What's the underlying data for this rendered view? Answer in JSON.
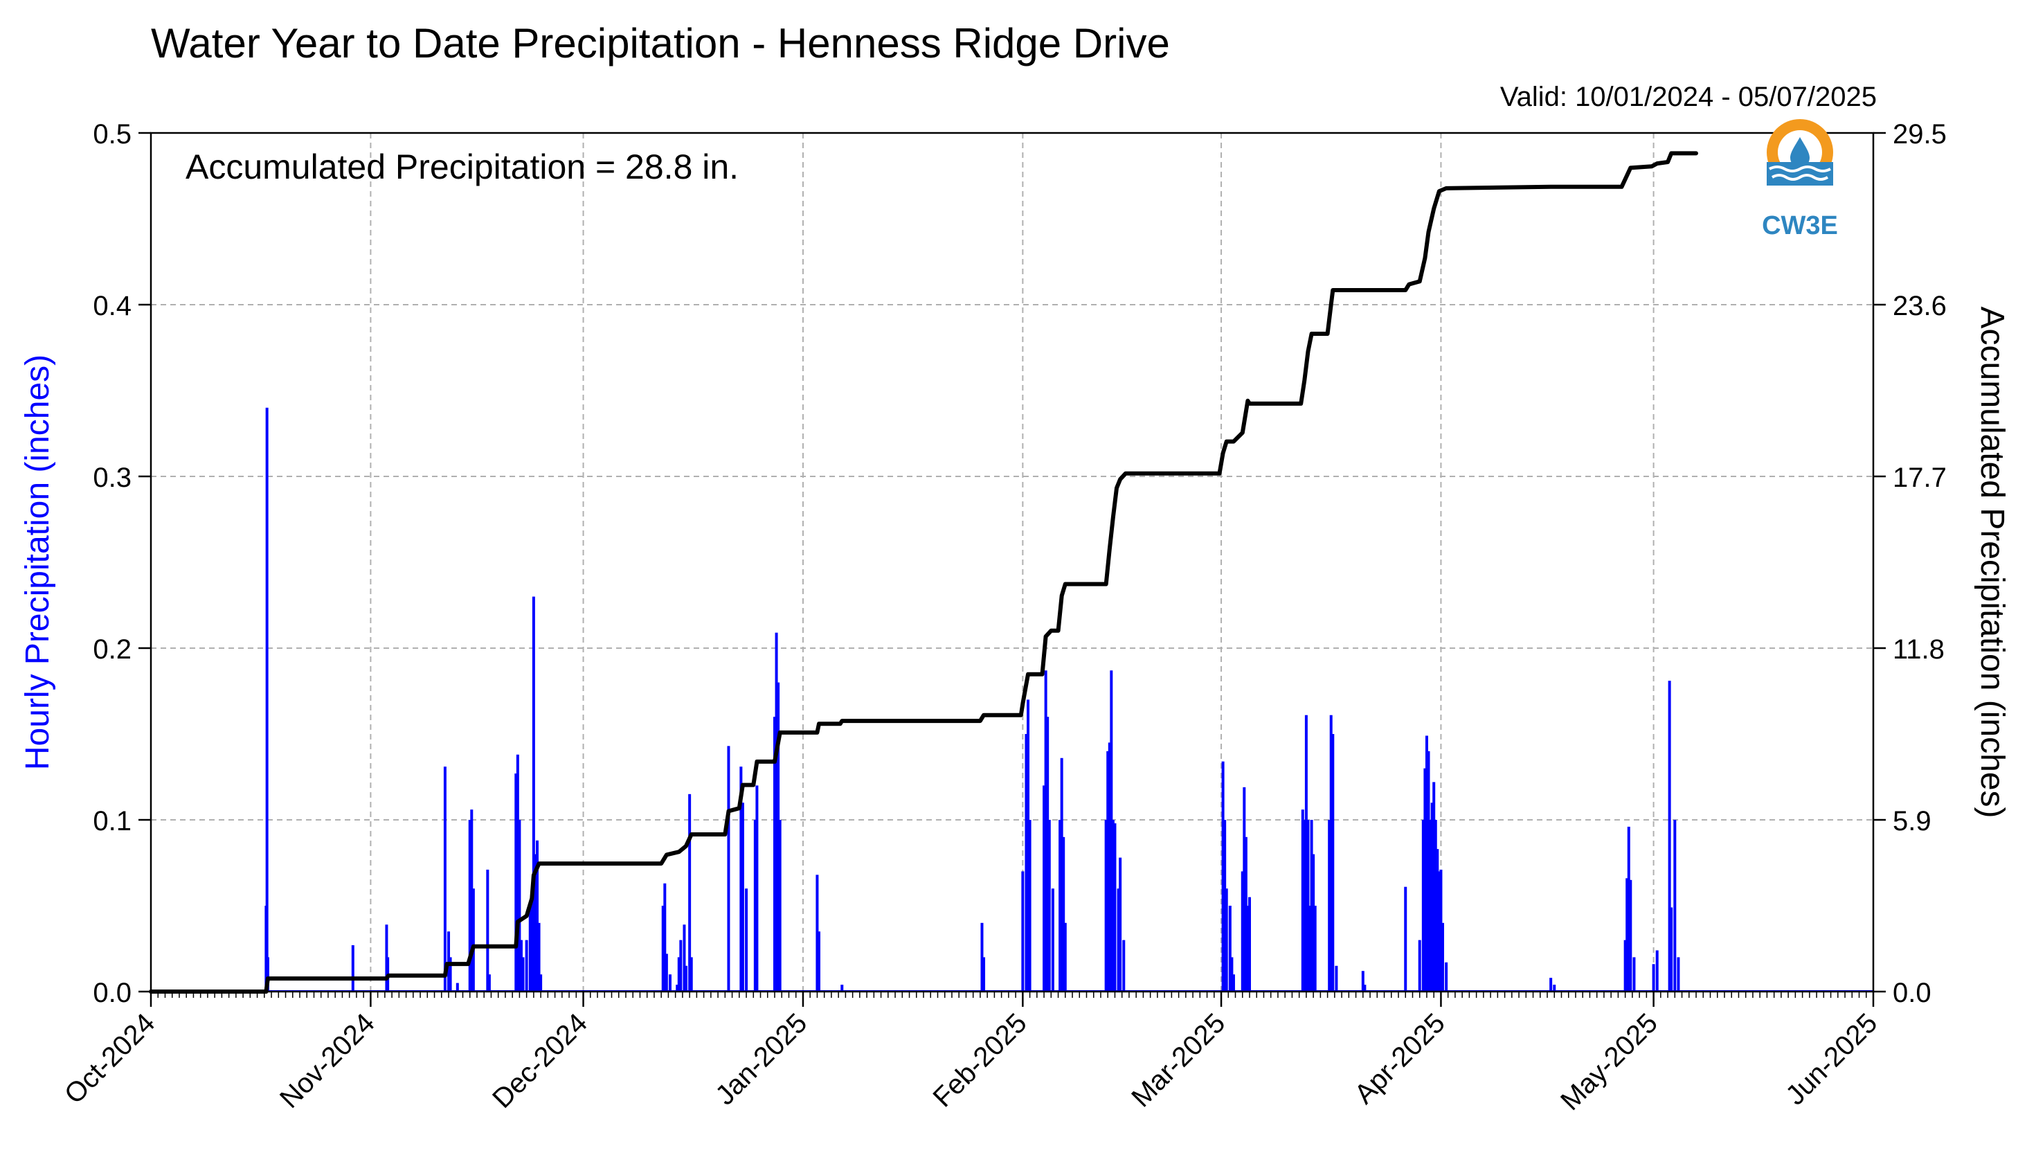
{
  "title": "Water Year to Date Precipitation - Henness Ridge Drive",
  "valid": "Valid: 10/01/2024 - 05/07/2025",
  "annotation": "Accumulated Precipitation = 28.8 in.",
  "logo_text": "CW3E",
  "colors": {
    "hourly": "#0000ff",
    "accumulated": "#000000",
    "grid": "#b0b0b0",
    "logo_orange": "#f39a1e",
    "logo_blue": "#2e86c1"
  },
  "chart_data": {
    "type": "bar+line",
    "xlabel": "",
    "ylabel_left": "Hourly Precipitation (inches)",
    "ylabel_right": "Accumulated Precipitation (inches)",
    "x_range": [
      "2024-10-01",
      "2025-06-01"
    ],
    "x_ticks": [
      "Oct-2024",
      "Nov-2024",
      "Dec-2024",
      "Jan-2025",
      "Feb-2025",
      "Mar-2025",
      "Apr-2025",
      "May-2025",
      "Jun-2025"
    ],
    "x_tick_dates": [
      "2024-10-01",
      "2024-11-01",
      "2024-12-01",
      "2025-01-01",
      "2025-02-01",
      "2025-03-01",
      "2025-04-01",
      "2025-05-01",
      "2025-06-01"
    ],
    "ylim_left": [
      0,
      0.5
    ],
    "yticks_left": [
      "0.0",
      "0.1",
      "0.2",
      "0.3",
      "0.4",
      "0.5"
    ],
    "ylim_right": [
      0,
      29.5
    ],
    "yticks_right": [
      "0.0",
      "5.9",
      "11.8",
      "17.7",
      "23.6",
      "29.5"
    ],
    "grid": true,
    "series": [
      {
        "name": "Hourly Precipitation",
        "type": "bar",
        "points": [
          [
            "2024-10-17 06:00",
            0.05
          ],
          [
            "2024-10-17 09:00",
            0.34
          ],
          [
            "2024-10-17 12:00",
            0.02
          ],
          [
            "2024-10-29 12:00",
            0.027
          ],
          [
            "2024-11-03 06:00",
            0.039
          ],
          [
            "2024-11-03 10:00",
            0.02
          ],
          [
            "2024-11-11 12:00",
            0.131
          ],
          [
            "2024-11-12 00:00",
            0.035
          ],
          [
            "2024-11-12 06:00",
            0.02
          ],
          [
            "2024-11-13 06:00",
            0.005
          ],
          [
            "2024-11-15 00:00",
            0.1
          ],
          [
            "2024-11-15 06:00",
            0.106
          ],
          [
            "2024-11-15 12:00",
            0.06
          ],
          [
            "2024-11-17 12:00",
            0.071
          ],
          [
            "2024-11-17 18:00",
            0.01
          ],
          [
            "2024-11-21 12:00",
            0.127
          ],
          [
            "2024-11-21 18:00",
            0.138
          ],
          [
            "2024-11-22 00:00",
            0.1
          ],
          [
            "2024-11-22 06:00",
            0.03
          ],
          [
            "2024-11-22 12:00",
            0.02
          ],
          [
            "2024-11-23 00:00",
            0.03
          ],
          [
            "2024-11-23 12:00",
            0.05
          ],
          [
            "2024-11-23 18:00",
            0.055
          ],
          [
            "2024-11-24 00:00",
            0.23
          ],
          [
            "2024-11-24 06:00",
            0.08
          ],
          [
            "2024-11-24 12:00",
            0.088
          ],
          [
            "2024-11-24 18:00",
            0.04
          ],
          [
            "2024-11-25 00:00",
            0.01
          ],
          [
            "2024-12-12 06:00",
            0.05
          ],
          [
            "2024-12-12 12:00",
            0.063
          ],
          [
            "2024-12-12 18:00",
            0.022
          ],
          [
            "2024-12-13 06:00",
            0.01
          ],
          [
            "2024-12-14 06:00",
            0.004
          ],
          [
            "2024-12-14 12:00",
            0.02
          ],
          [
            "2024-12-14 18:00",
            0.03
          ],
          [
            "2024-12-15 06:00",
            0.039
          ],
          [
            "2024-12-15 12:00",
            0.015
          ],
          [
            "2024-12-16 00:00",
            0.115
          ],
          [
            "2024-12-16 06:00",
            0.02
          ],
          [
            "2024-12-21 12:00",
            0.143
          ],
          [
            "2024-12-23 06:00",
            0.131
          ],
          [
            "2024-12-23 12:00",
            0.11
          ],
          [
            "2024-12-24 00:00",
            0.06
          ],
          [
            "2024-12-25 06:00",
            0.1
          ],
          [
            "2024-12-25 12:00",
            0.12
          ],
          [
            "2024-12-28 00:00",
            0.16
          ],
          [
            "2024-12-28 06:00",
            0.209
          ],
          [
            "2024-12-28 12:00",
            0.18
          ],
          [
            "2024-12-28 18:00",
            0.1
          ],
          [
            "2025-01-03 00:00",
            0.068
          ],
          [
            "2025-01-03 06:00",
            0.035
          ],
          [
            "2025-01-06 12:00",
            0.004
          ],
          [
            "2025-01-26 06:00",
            0.04
          ],
          [
            "2025-01-26 12:00",
            0.02
          ],
          [
            "2025-02-01 00:00",
            0.07
          ],
          [
            "2025-02-01 12:00",
            0.15
          ],
          [
            "2025-02-01 18:00",
            0.17
          ],
          [
            "2025-02-02 00:00",
            0.1
          ],
          [
            "2025-02-04 00:00",
            0.12
          ],
          [
            "2025-02-04 06:00",
            0.187
          ],
          [
            "2025-02-04 12:00",
            0.16
          ],
          [
            "2025-02-04 18:00",
            0.1
          ],
          [
            "2025-02-05 06:00",
            0.06
          ],
          [
            "2025-02-06 06:00",
            0.1
          ],
          [
            "2025-02-06 12:00",
            0.136
          ],
          [
            "2025-02-06 18:00",
            0.09
          ],
          [
            "2025-02-07 00:00",
            0.04
          ],
          [
            "2025-02-12 18:00",
            0.1
          ],
          [
            "2025-02-13 00:00",
            0.14
          ],
          [
            "2025-02-13 06:00",
            0.145
          ],
          [
            "2025-02-13 12:00",
            0.187
          ],
          [
            "2025-02-13 18:00",
            0.1
          ],
          [
            "2025-02-14 00:00",
            0.098
          ],
          [
            "2025-02-14 12:00",
            0.06
          ],
          [
            "2025-02-14 18:00",
            0.078
          ],
          [
            "2025-02-15 06:00",
            0.03
          ],
          [
            "2025-03-01 06:00",
            0.134
          ],
          [
            "2025-03-01 12:00",
            0.1
          ],
          [
            "2025-03-01 18:00",
            0.06
          ],
          [
            "2025-03-02 06:00",
            0.05
          ],
          [
            "2025-03-02 12:00",
            0.02
          ],
          [
            "2025-03-02 18:00",
            0.01
          ],
          [
            "2025-03-04 00:00",
            0.07
          ],
          [
            "2025-03-04 06:00",
            0.119
          ],
          [
            "2025-03-04 12:00",
            0.09
          ],
          [
            "2025-03-04 18:00",
            0.05
          ],
          [
            "2025-03-05 00:00",
            0.055
          ],
          [
            "2025-03-12 12:00",
            0.106
          ],
          [
            "2025-03-12 18:00",
            0.1
          ],
          [
            "2025-03-13 00:00",
            0.161
          ],
          [
            "2025-03-13 06:00",
            0.1
          ],
          [
            "2025-03-13 12:00",
            0.05
          ],
          [
            "2025-03-13 18:00",
            0.1
          ],
          [
            "2025-03-14 00:00",
            0.08
          ],
          [
            "2025-03-14 06:00",
            0.05
          ],
          [
            "2025-03-16 06:00",
            0.1
          ],
          [
            "2025-03-16 12:00",
            0.161
          ],
          [
            "2025-03-16 18:00",
            0.15
          ],
          [
            "2025-03-17 06:00",
            0.015
          ],
          [
            "2025-03-21 00:00",
            0.012
          ],
          [
            "2025-03-21 06:00",
            0.004
          ],
          [
            "2025-03-27 00:00",
            0.061
          ],
          [
            "2025-03-29 00:00",
            0.03
          ],
          [
            "2025-03-29 12:00",
            0.1
          ],
          [
            "2025-03-29 18:00",
            0.13
          ],
          [
            "2025-03-30 00:00",
            0.149
          ],
          [
            "2025-03-30 06:00",
            0.14
          ],
          [
            "2025-03-30 12:00",
            0.1
          ],
          [
            "2025-03-30 18:00",
            0.11
          ],
          [
            "2025-03-31 00:00",
            0.122
          ],
          [
            "2025-03-31 06:00",
            0.1
          ],
          [
            "2025-03-31 12:00",
            0.083
          ],
          [
            "2025-03-31 18:00",
            0.07
          ],
          [
            "2025-04-01 00:00",
            0.071
          ],
          [
            "2025-04-01 06:00",
            0.04
          ],
          [
            "2025-04-01 18:00",
            0.017
          ],
          [
            "2025-04-16 12:00",
            0.008
          ],
          [
            "2025-04-17 00:00",
            0.004
          ],
          [
            "2025-04-27 00:00",
            0.03
          ],
          [
            "2025-04-27 06:00",
            0.066
          ],
          [
            "2025-04-27 12:00",
            0.096
          ],
          [
            "2025-04-27 18:00",
            0.065
          ],
          [
            "2025-04-28 06:00",
            0.02
          ],
          [
            "2025-05-01 00:00",
            0.016
          ],
          [
            "2025-05-01 12:00",
            0.024
          ],
          [
            "2025-05-03 06:00",
            0.181
          ],
          [
            "2025-05-03 12:00",
            0.049
          ],
          [
            "2025-05-04 00:00",
            0.1
          ],
          [
            "2025-05-04 12:00",
            0.02
          ]
        ]
      },
      {
        "name": "Accumulated Precipitation",
        "type": "step-line",
        "points": [
          [
            "2024-10-01",
            0.0
          ],
          [
            "2024-10-17 06:00",
            0.0
          ],
          [
            "2024-10-17 12:00",
            0.45
          ],
          [
            "2024-11-03 06:00",
            0.45
          ],
          [
            "2024-11-03 12:00",
            0.55
          ],
          [
            "2024-11-11 12:00",
            0.55
          ],
          [
            "2024-11-11 18:00",
            0.95
          ],
          [
            "2024-11-14 18:00",
            0.95
          ],
          [
            "2024-11-15 12:00",
            1.55
          ],
          [
            "2024-11-21 12:00",
            1.55
          ],
          [
            "2024-11-21 18:00",
            2.4
          ],
          [
            "2024-11-23 00:00",
            2.6
          ],
          [
            "2024-11-23 18:00",
            3.2
          ],
          [
            "2024-11-24 00:00",
            4.0
          ],
          [
            "2024-11-24 18:00",
            4.4
          ],
          [
            "2024-12-12 00:00",
            4.4
          ],
          [
            "2024-12-12 18:00",
            4.7
          ],
          [
            "2024-12-14 12:00",
            4.8
          ],
          [
            "2024-12-15 12:00",
            5.0
          ],
          [
            "2024-12-16 06:00",
            5.4
          ],
          [
            "2024-12-21 00:00",
            5.4
          ],
          [
            "2024-12-21 12:00",
            6.2
          ],
          [
            "2024-12-23 00:00",
            6.3
          ],
          [
            "2024-12-23 12:00",
            7.1
          ],
          [
            "2024-12-25 00:00",
            7.1
          ],
          [
            "2024-12-25 12:00",
            7.9
          ],
          [
            "2024-12-28 00:00",
            7.9
          ],
          [
            "2024-12-28 18:00",
            8.9
          ],
          [
            "2025-01-03 00:00",
            8.9
          ],
          [
            "2025-01-03 06:00",
            9.2
          ],
          [
            "2025-01-06 06:00",
            9.2
          ],
          [
            "2025-01-06 12:00",
            9.3
          ],
          [
            "2025-01-26 00:00",
            9.3
          ],
          [
            "2025-01-26 12:00",
            9.5
          ],
          [
            "2025-01-31 18:00",
            9.5
          ],
          [
            "2025-02-01 00:00",
            9.9
          ],
          [
            "2025-02-01 18:00",
            10.9
          ],
          [
            "2025-02-03 18:00",
            10.9
          ],
          [
            "2025-02-04 06:00",
            12.2
          ],
          [
            "2025-02-05 00:00",
            12.4
          ],
          [
            "2025-02-06 00:00",
            12.4
          ],
          [
            "2025-02-06 12:00",
            13.6
          ],
          [
            "2025-02-07 00:00",
            14.0
          ],
          [
            "2025-02-12 18:00",
            14.0
          ],
          [
            "2025-02-13 06:00",
            15.2
          ],
          [
            "2025-02-13 18:00",
            16.3
          ],
          [
            "2025-02-14 06:00",
            17.3
          ],
          [
            "2025-02-14 18:00",
            17.6
          ],
          [
            "2025-02-15 12:00",
            17.8
          ],
          [
            "2025-02-28 18:00",
            17.8
          ],
          [
            "2025-03-01 06:00",
            18.5
          ],
          [
            "2025-03-01 18:00",
            18.9
          ],
          [
            "2025-03-02 18:00",
            18.9
          ],
          [
            "2025-03-04 00:00",
            19.2
          ],
          [
            "2025-03-04 18:00",
            20.3
          ],
          [
            "2025-03-05 00:00",
            20.2
          ],
          [
            "2025-03-12 06:00",
            20.2
          ],
          [
            "2025-03-12 18:00",
            21.0
          ],
          [
            "2025-03-13 06:00",
            22.0
          ],
          [
            "2025-03-13 18:00",
            22.6
          ],
          [
            "2025-03-16 00:00",
            22.6
          ],
          [
            "2025-03-16 12:00",
            23.6
          ],
          [
            "2025-03-16 18:00",
            24.1
          ],
          [
            "2025-03-27 00:00",
            24.1
          ],
          [
            "2025-03-27 12:00",
            24.3
          ],
          [
            "2025-03-29 00:00",
            24.4
          ],
          [
            "2025-03-29 18:00",
            25.2
          ],
          [
            "2025-03-30 06:00",
            26.1
          ],
          [
            "2025-03-31 00:00",
            26.9
          ],
          [
            "2025-03-31 18:00",
            27.5
          ],
          [
            "2025-04-01 18:00",
            27.6
          ],
          [
            "2025-04-16 12:00",
            27.65
          ],
          [
            "2025-04-26 12:00",
            27.65
          ],
          [
            "2025-04-27 18:00",
            28.3
          ],
          [
            "2025-04-30 18:00",
            28.35
          ],
          [
            "2025-05-01 12:00",
            28.45
          ],
          [
            "2025-05-03 00:00",
            28.5
          ],
          [
            "2025-05-03 12:00",
            28.8
          ],
          [
            "2025-05-07 00:00",
            28.8
          ]
        ]
      }
    ]
  }
}
